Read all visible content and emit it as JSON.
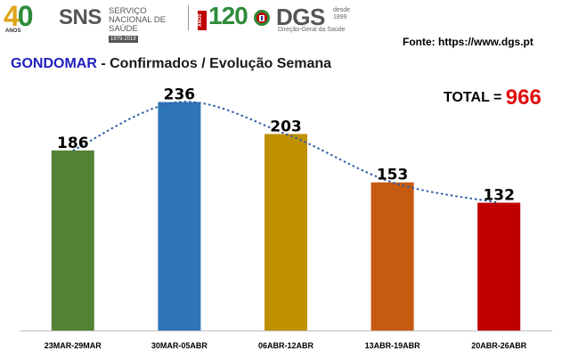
{
  "header": {
    "logo_40": {
      "digit_4": "4",
      "digit_0": "0",
      "caption": "ANOS"
    },
    "sns": {
      "abbr": "SNS",
      "full": "SERVIÇO NACIONAL DE SAÚDE",
      "years": "1979-2019"
    },
    "logo_120": {
      "caption": "ANOS",
      "number": "120"
    },
    "dgs": {
      "abbr": "DGS",
      "since": "desde 1899",
      "full": "Direção-Geral da Saúde"
    }
  },
  "source": "Fonte: https://www.dgs.pt",
  "title": {
    "place": "GONDOMAR",
    "rest": " - Confirmados / Evolução Semana"
  },
  "total": {
    "label": "TOTAL = ",
    "value": "966"
  },
  "colors": {
    "bars": [
      "#548235",
      "#2e75b6",
      "#bf9000",
      "#c55a11",
      "#c00000"
    ],
    "trendline": "#2e5fa8",
    "place": "#1f1fbf",
    "total_value": "#e01010"
  },
  "chart_data": {
    "type": "bar",
    "categories": [
      "23MAR-29MAR",
      "30MAR-05ABR",
      "06ABR-12ABR",
      "13ABR-19ABR",
      "20ABR-26ABR"
    ],
    "values": [
      186,
      236,
      203,
      153,
      132
    ],
    "data_labels": [
      "186",
      "236",
      "203",
      "153",
      "132"
    ],
    "trendline": "dotted polynomial",
    "ylim": [
      0,
      300
    ],
    "grid": false,
    "legend": "none"
  }
}
